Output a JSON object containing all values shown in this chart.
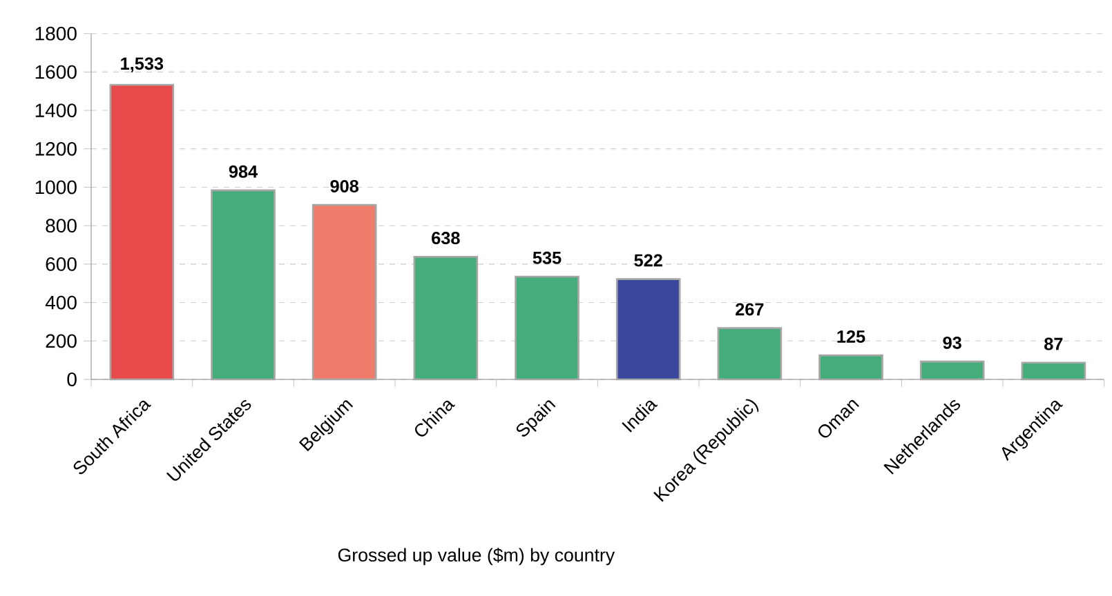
{
  "chart_data": {
    "type": "bar",
    "xlabel": "Grossed up value ($m) by country",
    "categories": [
      "South Africa",
      "United States",
      "Belgium",
      "China",
      "Spain",
      "India",
      "Korea (Republic)",
      "Oman",
      "Netherlands",
      "Argentina"
    ],
    "values": [
      1533,
      984,
      908,
      638,
      535,
      522,
      267,
      125,
      93,
      87
    ],
    "value_labels": [
      "1,533",
      "984",
      "908",
      "638",
      "535",
      "522",
      "267",
      "125",
      "93",
      "87"
    ],
    "colors": [
      "#e84b4b",
      "#45ad7c",
      "#ef7b6b",
      "#45ad7c",
      "#45ad7c",
      "#3b479e",
      "#45ad7c",
      "#45ad7c",
      "#45ad7c",
      "#45ad7c"
    ],
    "ylim": [
      0,
      1800
    ],
    "yticks": [
      0,
      200,
      400,
      600,
      800,
      1000,
      1200,
      1400,
      1600,
      1800
    ],
    "grid": "y"
  }
}
